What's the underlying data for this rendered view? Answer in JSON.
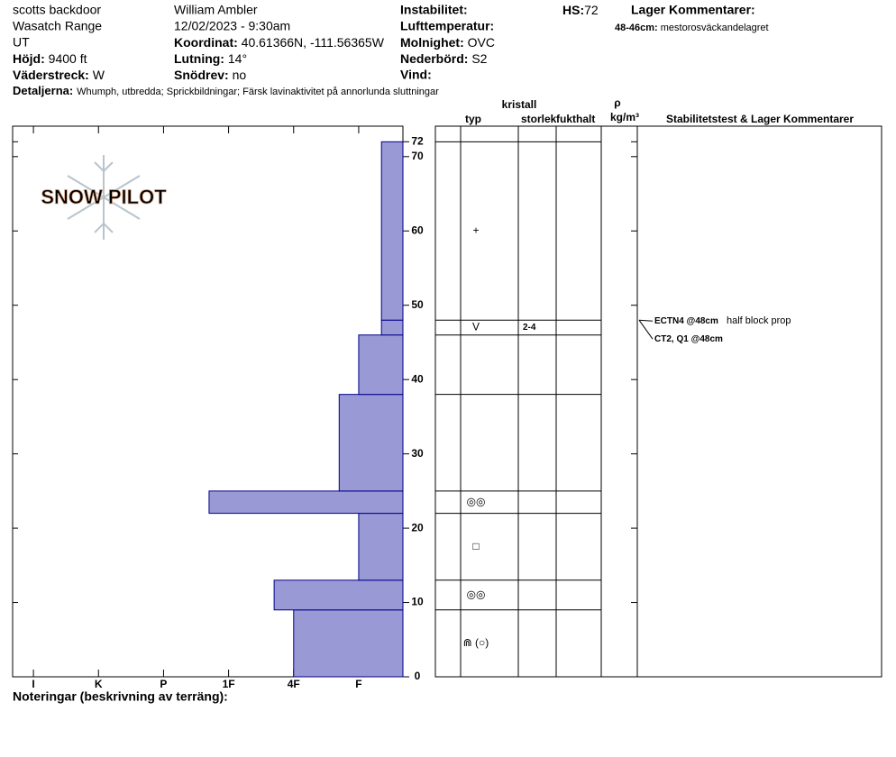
{
  "header": {
    "location": "scotts backdoor",
    "range": "Wasatch Range",
    "state": "UT",
    "elevation_label": "Höjd:",
    "elevation": "9400 ft",
    "aspect_label": "Väderstreck:",
    "aspect": "W",
    "observer": "William Ambler",
    "datetime": "12/02/2023 - 9:30am",
    "coord_label": "Koordinat:",
    "coord": "40.61366N, -111.56365W",
    "slope_label": "Lutning:",
    "slope": "14°",
    "wind_loading_label": "Snödrev:",
    "wind_loading": "no",
    "instability_label": "Instabilitet:",
    "airtemp_label": "Lufttemperatur:",
    "sky_label": "Molnighet:",
    "sky": "OVC",
    "precip_label": "Nederbörd:",
    "precip": "S2",
    "wind_label": "Vind:",
    "hs_label": "HS:",
    "hs": 72,
    "layer_comments_label": "Lager Kommentarer:",
    "layer_comment_range": "48-46cm:",
    "layer_comment": "mestorosväckandelagret",
    "details_label": "Detaljerna:",
    "details": "Whumph, utbredda;  Sprickbildningar;  Färsk lavinaktivitet på annorlunda sluttningar"
  },
  "watermark": "SNOW PILOT",
  "notes_label": "Noteringar (beskrivning av terräng):",
  "table_headers": {
    "crystal": "kristall",
    "type": "typ",
    "size": "storlek",
    "moisture": "fukthalt",
    "rho": "ρ",
    "density_unit": "kg/m³",
    "comments": "Stabilitetstest & Lager Kommentarer"
  },
  "chart_data": {
    "type": "snowprofile",
    "color": "#9999d6",
    "edge_color": "#00008b",
    "xlim": [
      6.32,
      0.32
    ],
    "xticks": [
      {
        "value": 6,
        "label": "I"
      },
      {
        "value": 5,
        "label": "K"
      },
      {
        "value": 4,
        "label": "P"
      },
      {
        "value": 3,
        "label": "1F"
      },
      {
        "value": 2,
        "label": "4F"
      },
      {
        "value": 1,
        "label": "F"
      }
    ],
    "ylim": [
      0,
      74.1
    ],
    "yticks": [
      0,
      10,
      20,
      30,
      40,
      50,
      60,
      70,
      72
    ],
    "layers": [
      {
        "bottom": 0,
        "top": 9,
        "hardness": 2,
        "grain": "⋒ (○)"
      },
      {
        "bottom": 9,
        "top": 13,
        "hardness": 2.3,
        "grain": "◎◎"
      },
      {
        "bottom": 13,
        "top": 22,
        "hardness": 1,
        "grain": "□"
      },
      {
        "bottom": 22,
        "top": 25,
        "hardness": 3.3,
        "grain": "◎◎"
      },
      {
        "bottom": 25,
        "top": 38,
        "hardness": 1.3
      },
      {
        "bottom": 38,
        "top": 46,
        "hardness": 1
      },
      {
        "bottom": 46,
        "top": 48,
        "hardness": 0.65,
        "grain": "V",
        "size": "2-4"
      },
      {
        "bottom": 48,
        "top": 72,
        "hardness": 0.65,
        "grain": "+"
      }
    ],
    "tests": [
      {
        "label": "ECTN4 @48cm",
        "comment": "half block prop",
        "depth": 48
      },
      {
        "label": "CT2, Q1 @48cm",
        "depth": 48
      }
    ]
  }
}
